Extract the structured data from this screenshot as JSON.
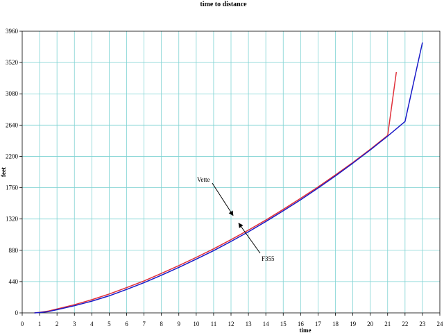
{
  "chart_data": {
    "type": "line",
    "title": "time to distance",
    "xlabel": "time",
    "ylabel": "feet",
    "xlim": [
      0,
      24
    ],
    "ylim": [
      0,
      3960
    ],
    "xticks": [
      "0",
      "1",
      "2",
      "3",
      "4",
      "5",
      "6",
      "7",
      "8",
      "9",
      "10",
      "11",
      "12",
      "13",
      "14",
      "15",
      "16",
      "17",
      "18",
      "19",
      "20",
      "21",
      "22",
      "23",
      "24"
    ],
    "yticks": [
      "0",
      "440",
      "880",
      "1320",
      "1760",
      "2200",
      "2640",
      "3080",
      "3520",
      "3960"
    ],
    "grid": true,
    "series": [
      {
        "name": "Vette",
        "color": "#e0303a",
        "points": [
          [
            0.7,
            0
          ],
          [
            1,
            8
          ],
          [
            1.5,
            25
          ],
          [
            2,
            55
          ],
          [
            3,
            115
          ],
          [
            4,
            185
          ],
          [
            5,
            265
          ],
          [
            6,
            355
          ],
          [
            7,
            450
          ],
          [
            8,
            555
          ],
          [
            9,
            665
          ],
          [
            10,
            780
          ],
          [
            11,
            900
          ],
          [
            12,
            1030
          ],
          [
            13,
            1165
          ],
          [
            14,
            1305
          ],
          [
            15,
            1455
          ],
          [
            16,
            1610
          ],
          [
            17,
            1770
          ],
          [
            18,
            1940
          ],
          [
            19,
            2115
          ],
          [
            20,
            2300
          ],
          [
            21,
            2495
          ],
          [
            21.5,
            3385
          ]
        ]
      },
      {
        "name": "F355",
        "color": "#1a1ac8",
        "points": [
          [
            0.7,
            0
          ],
          [
            1,
            5
          ],
          [
            1.5,
            18
          ],
          [
            2,
            45
          ],
          [
            3,
            100
          ],
          [
            4,
            165
          ],
          [
            5,
            240
          ],
          [
            6,
            330
          ],
          [
            7,
            425
          ],
          [
            8,
            530
          ],
          [
            9,
            640
          ],
          [
            10,
            755
          ],
          [
            11,
            875
          ],
          [
            12,
            1005
          ],
          [
            13,
            1140
          ],
          [
            14,
            1285
          ],
          [
            15,
            1435
          ],
          [
            16,
            1590
          ],
          [
            17,
            1755
          ],
          [
            18,
            1925
          ],
          [
            19,
            2105
          ],
          [
            20,
            2290
          ],
          [
            21,
            2485
          ],
          [
            22,
            2690
          ],
          [
            23,
            3800
          ]
        ]
      }
    ],
    "annotations": [
      {
        "text": "Vette",
        "target": [
          12.2,
          1340
        ]
      },
      {
        "text": "F355",
        "target": [
          12.4,
          1290
        ]
      }
    ]
  }
}
